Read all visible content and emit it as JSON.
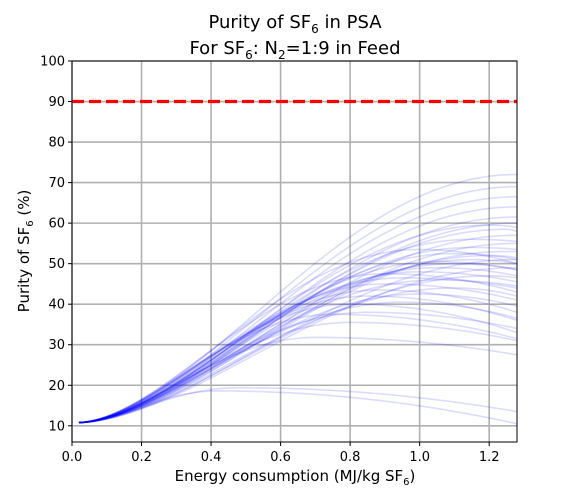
{
  "chart_data": {
    "type": "line",
    "title_line1": "Purity of SF",
    "title_line1_sub": "6",
    "title_line1_tail": " in PSA",
    "title_line2": "For SF",
    "title_line2_sub1": "6",
    "title_line2_mid": ": N",
    "title_line2_sub2": "2",
    "title_line2_tail": "=1:9 in Feed",
    "xlabel": "Energy consumption (MJ/kg SF",
    "xlabel_sub": "6",
    "xlabel_tail": ")",
    "ylabel": "Purity of SF",
    "ylabel_sub": "6",
    "ylabel_tail": " (%)",
    "xlim": [
      0.0,
      1.28
    ],
    "ylim": [
      6,
      100
    ],
    "xticks": [
      "0.0",
      "0.2",
      "0.4",
      "0.6",
      "0.8",
      "1.0",
      "1.2"
    ],
    "yticks": [
      "10",
      "20",
      "30",
      "40",
      "50",
      "60",
      "70",
      "80",
      "90",
      "100"
    ],
    "grid": true,
    "target_line": {
      "y": 90,
      "color": "#ff0000",
      "style": "dashed"
    },
    "series_color": "#0000ff",
    "curve_start": {
      "x": 0.02,
      "y": 10.8
    },
    "curve_end_x": 1.28,
    "series_peaks": [
      [
        0.42,
        18.6
      ],
      [
        0.48,
        19.4
      ],
      [
        0.7,
        31.8
      ],
      [
        0.75,
        37.5
      ],
      [
        0.8,
        40.0
      ],
      [
        0.85,
        42.0
      ],
      [
        0.88,
        43.5
      ],
      [
        0.9,
        45.0
      ],
      [
        0.95,
        46.5
      ],
      [
        1.0,
        48.0
      ],
      [
        1.05,
        49.0
      ],
      [
        1.1,
        50.0
      ],
      [
        1.15,
        51.0
      ],
      [
        1.2,
        52.0
      ],
      [
        1.25,
        53.0
      ],
      [
        1.0,
        53.5
      ],
      [
        1.28,
        55.0
      ],
      [
        1.28,
        57.0
      ],
      [
        1.28,
        60.0
      ],
      [
        1.28,
        69.0
      ],
      [
        1.28,
        72.0
      ],
      [
        1.1,
        44.0
      ],
      [
        1.2,
        47.0
      ],
      [
        1.05,
        50.5
      ],
      [
        1.15,
        54.0
      ],
      [
        0.95,
        40.5
      ],
      [
        1.0,
        42.5
      ],
      [
        1.25,
        58.5
      ],
      [
        1.28,
        64.0
      ],
      [
        1.28,
        66.5
      ],
      [
        0.9,
        47.5
      ],
      [
        1.05,
        46.0
      ],
      [
        1.15,
        56.0
      ],
      [
        1.28,
        51.0
      ],
      [
        1.2,
        59.5
      ],
      [
        0.85,
        38.0
      ],
      [
        1.28,
        61.5
      ],
      [
        1.1,
        52.5
      ],
      [
        0.8,
        35.5
      ],
      [
        1.28,
        49.0
      ]
    ],
    "series_end_y": [
      10.5,
      13.5,
      27.5,
      31.5,
      33.0,
      36.0,
      38.0,
      41.0,
      44.0,
      45.5,
      47.0,
      48.5,
      50.0,
      51.5,
      53.0,
      50.0,
      55.0,
      57.0,
      60.0,
      69.0,
      72.0,
      42.0,
      46.5,
      48.5,
      53.5,
      36.5,
      39.5,
      58.0,
      64.0,
      66.5,
      43.0,
      44.5,
      55.5,
      51.0,
      59.0,
      34.0,
      61.5,
      51.0,
      31.0,
      49.0
    ]
  }
}
